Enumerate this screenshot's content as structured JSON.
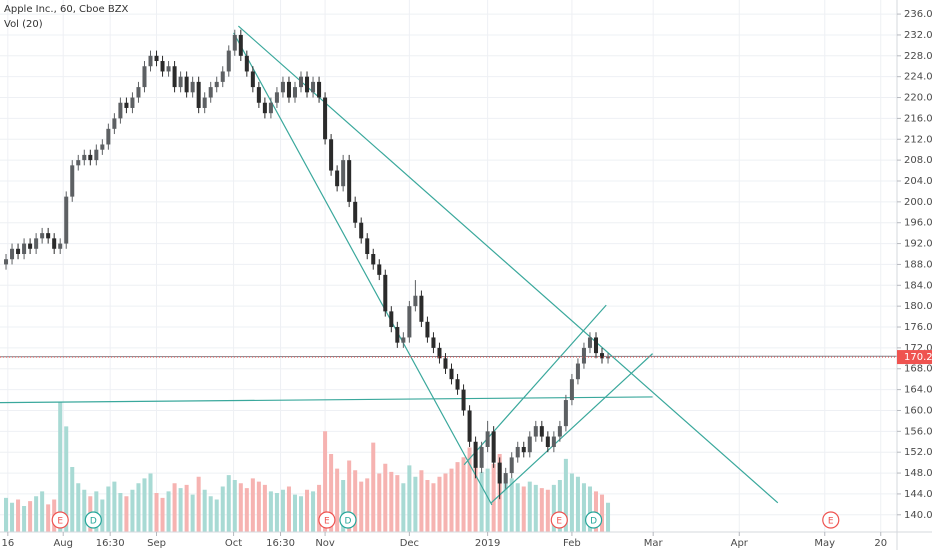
{
  "chart_data": {
    "type": "candlestick",
    "title": "Apple Inc., 60, Cboe BZX",
    "subtitle": "Vol (20)",
    "up_color": "#5d6063",
    "down_color": "#2b2b2b",
    "volume_up_color": "#a8dad4",
    "volume_down_color": "#f6b3b1",
    "grid": true,
    "xlim": [
      -1,
      148
    ],
    "ylim": [
      136.7,
      238.7
    ],
    "xticks": [
      {
        "value": 0.3,
        "label": "16"
      },
      {
        "value": 9.5,
        "label": "Aug"
      },
      {
        "value": 17.3,
        "label": "16:30"
      },
      {
        "value": 25,
        "label": "Sep"
      },
      {
        "value": 37.8,
        "label": "Oct"
      },
      {
        "value": 45.6,
        "label": "16:30"
      },
      {
        "value": 53,
        "label": "Nov"
      },
      {
        "value": 67,
        "label": "Dec"
      },
      {
        "value": 80,
        "label": "2019"
      },
      {
        "value": 94,
        "label": "Feb"
      },
      {
        "value": 107.5,
        "label": "Mar"
      },
      {
        "value": 121.8,
        "label": "Apr"
      },
      {
        "value": 136,
        "label": "May"
      },
      {
        "value": 145.3,
        "label": "20"
      }
    ],
    "yticks": [
      {
        "value": 140,
        "label": "140.00"
      },
      {
        "value": 144,
        "label": "144.00"
      },
      {
        "value": 148,
        "label": "148.00"
      },
      {
        "value": 152,
        "label": "152.00"
      },
      {
        "value": 156,
        "label": "156.00"
      },
      {
        "value": 160,
        "label": "160.00"
      },
      {
        "value": 164,
        "label": "164.00"
      },
      {
        "value": 168,
        "label": "168.00"
      },
      {
        "value": 172,
        "label": "172.00"
      },
      {
        "value": 176,
        "label": "176.00"
      },
      {
        "value": 180,
        "label": "180.00"
      },
      {
        "value": 184,
        "label": "184.00"
      },
      {
        "value": 188,
        "label": "188.00"
      },
      {
        "value": 192,
        "label": "192.00"
      },
      {
        "value": 196,
        "label": "196.00"
      },
      {
        "value": 200,
        "label": "200.00"
      },
      {
        "value": 204,
        "label": "204.00"
      },
      {
        "value": 208,
        "label": "208.00"
      },
      {
        "value": 212,
        "label": "212.00"
      },
      {
        "value": 216,
        "label": "216.00"
      },
      {
        "value": 220,
        "label": "220.00"
      },
      {
        "value": 224,
        "label": "224.00"
      },
      {
        "value": 228,
        "label": "228.00"
      },
      {
        "value": 232,
        "label": "232.00"
      },
      {
        "value": 236,
        "label": "236.00"
      }
    ],
    "open": [
      188,
      189,
      191,
      190,
      192,
      191,
      193,
      194,
      193,
      191,
      192,
      201,
      207,
      208,
      209,
      208,
      210,
      211,
      214,
      216,
      219,
      218,
      220,
      222,
      226,
      228,
      227,
      225,
      226,
      222,
      224,
      221,
      223,
      218,
      220,
      222,
      223,
      225,
      229,
      232,
      228,
      225,
      222,
      219,
      217,
      219,
      221,
      223,
      220,
      222,
      224,
      221,
      223,
      220,
      212,
      206,
      203,
      208,
      200,
      196,
      193,
      190,
      188,
      186,
      179,
      176,
      173,
      174,
      180,
      182,
      177,
      174,
      172,
      170,
      168,
      166,
      164,
      160,
      154,
      149,
      153,
      156,
      150,
      146,
      148,
      151,
      153,
      152,
      155,
      157,
      155,
      153,
      155,
      157,
      162,
      166,
      169,
      172,
      174,
      171,
      170
    ],
    "high": [
      190,
      192,
      192,
      193,
      193,
      194,
      195,
      195,
      194,
      193,
      202,
      208,
      209,
      210,
      210,
      211,
      212,
      215,
      217,
      220,
      220,
      221,
      223,
      227,
      229,
      229,
      228,
      227,
      227,
      225,
      225,
      224,
      224,
      221,
      223,
      224,
      226,
      230,
      233,
      233,
      229,
      226,
      223,
      220,
      220,
      222,
      224,
      224,
      223,
      225,
      225,
      224,
      224,
      221,
      213,
      207,
      209,
      209,
      201,
      197,
      194,
      191,
      189,
      187,
      180,
      177,
      175,
      181,
      185,
      183,
      178,
      175,
      173,
      171,
      169,
      167,
      165,
      161,
      155,
      154,
      158,
      157,
      151,
      149,
      152,
      154,
      154,
      156,
      158,
      158,
      156,
      156,
      158,
      163,
      167,
      170,
      173,
      175,
      175,
      172,
      171
    ],
    "low": [
      187,
      188,
      189,
      189,
      190,
      190,
      192,
      192,
      190,
      190,
      191,
      200,
      206,
      207,
      207,
      207,
      209,
      210,
      213,
      215,
      217,
      217,
      219,
      221,
      225,
      226,
      224,
      224,
      221,
      221,
      220,
      220,
      217,
      217,
      219,
      221,
      222,
      224,
      228,
      227,
      224,
      221,
      218,
      216,
      216,
      218,
      220,
      219,
      219,
      221,
      220,
      220,
      219,
      211,
      205,
      202,
      202,
      199,
      195,
      192,
      189,
      187,
      185,
      178,
      175,
      172,
      172,
      173,
      179,
      176,
      173,
      171,
      169,
      167,
      165,
      163,
      159,
      153,
      147,
      148,
      152,
      149,
      143,
      145,
      147,
      150,
      151,
      151,
      154,
      154,
      152,
      152,
      154,
      156,
      161,
      165,
      168,
      171,
      170,
      169,
      169
    ],
    "close": [
      189,
      191,
      190,
      192,
      191,
      193,
      194,
      193,
      191,
      192,
      201,
      207,
      208,
      209,
      208,
      210,
      211,
      214,
      216,
      219,
      218,
      220,
      222,
      226,
      228,
      227,
      225,
      226,
      222,
      224,
      221,
      223,
      218,
      220,
      222,
      223,
      225,
      229,
      232,
      228,
      225,
      222,
      219,
      217,
      219,
      221,
      223,
      220,
      222,
      224,
      221,
      223,
      220,
      212,
      206,
      203,
      208,
      200,
      196,
      193,
      190,
      188,
      186,
      179,
      176,
      173,
      174,
      180,
      182,
      177,
      174,
      172,
      170,
      168,
      166,
      164,
      160,
      154,
      149,
      153,
      156,
      150,
      146,
      148,
      151,
      153,
      152,
      155,
      157,
      155,
      153,
      155,
      157,
      162,
      166,
      169,
      172,
      174,
      171,
      170,
      170.24
    ],
    "volume": [
      2.1,
      1.8,
      2.0,
      1.6,
      1.9,
      2.2,
      2.5,
      1.7,
      2.0,
      8.0,
      6.5,
      4.0,
      3.0,
      2.6,
      2.2,
      2.5,
      2.0,
      2.8,
      3.1,
      2.4,
      2.2,
      2.6,
      3.0,
      3.3,
      3.6,
      2.4,
      2.1,
      2.5,
      3.0,
      2.7,
      2.9,
      2.3,
      3.4,
      2.6,
      2.2,
      2.0,
      2.8,
      3.5,
      3.2,
      3.0,
      2.7,
      3.3,
      3.1,
      2.9,
      2.5,
      2.4,
      2.6,
      2.8,
      2.3,
      2.2,
      2.6,
      2.5,
      2.9,
      6.2,
      4.8,
      3.9,
      3.2,
      4.4,
      3.8,
      3.1,
      3.3,
      5.5,
      3.6,
      4.2,
      3.7,
      3.5,
      3.0,
      4.1,
      3.4,
      3.8,
      3.2,
      3.0,
      3.4,
      3.6,
      3.9,
      4.3,
      4.6,
      5.2,
      4.9,
      3.7,
      3.9,
      4.2,
      4.8,
      3.5,
      3.3,
      3.0,
      2.8,
      3.1,
      2.9,
      2.7,
      2.6,
      2.9,
      3.2,
      4.5,
      3.6,
      3.4,
      3.0,
      2.8,
      2.5,
      2.3,
      1.8
    ],
    "trend_line_color": "#3aa89c",
    "trend_lines": [
      {
        "x": [
          38.6,
          128.2
        ],
        "y": [
          233.7,
          142.3
        ]
      },
      {
        "x": [
          37.8,
          80.7
        ],
        "y": [
          232.4,
          141.9
        ]
      },
      {
        "x": [
          80.6,
          107.4
        ],
        "y": [
          142.3,
          170.9
        ]
      },
      {
        "x": [
          76.1,
          99.7
        ],
        "y": [
          149.6,
          180.2
        ]
      },
      {
        "x": [
          -1,
          107.4
        ],
        "y": [
          161.5,
          162.6
        ]
      }
    ],
    "horizontal_line": {
      "x": [
        -1,
        148
      ],
      "y": [
        170.3,
        170.4
      ],
      "color": "#7d8088"
    },
    "last_price": {
      "value": 170.24,
      "label": "170.24",
      "color": "#ef5350"
    },
    "events": [
      {
        "label": "E",
        "x": 9,
        "color": "#ef5350"
      },
      {
        "label": "D",
        "x": 14.5,
        "color": "#26a69a"
      },
      {
        "label": "E",
        "x": 53.3,
        "color": "#ef5350"
      },
      {
        "label": "D",
        "x": 56.8,
        "color": "#26a69a"
      },
      {
        "label": "E",
        "x": 91.9,
        "color": "#ef5350"
      },
      {
        "label": "D",
        "x": 97.6,
        "color": "#26a69a"
      },
      {
        "label": "E",
        "x": 137,
        "color": "#ef5350"
      }
    ]
  }
}
